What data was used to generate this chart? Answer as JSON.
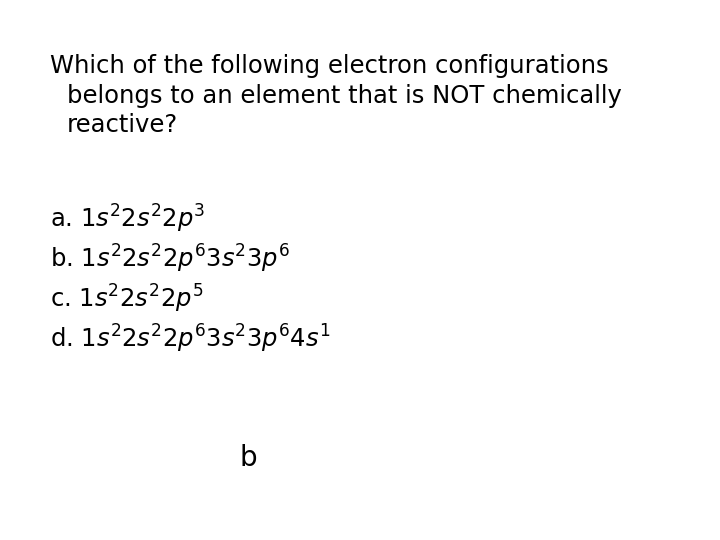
{
  "background_color": "#ffffff",
  "question_line1": "Which of the following electron configurations",
  "question_line2": "belongs to an element that is NOT chemically",
  "question_line3": "reactive?",
  "answer": "b",
  "fig_width": 7.2,
  "fig_height": 5.4,
  "dpi": 100,
  "font_size_question": 17.5,
  "font_size_choices": 17.5,
  "font_size_answer": 20
}
